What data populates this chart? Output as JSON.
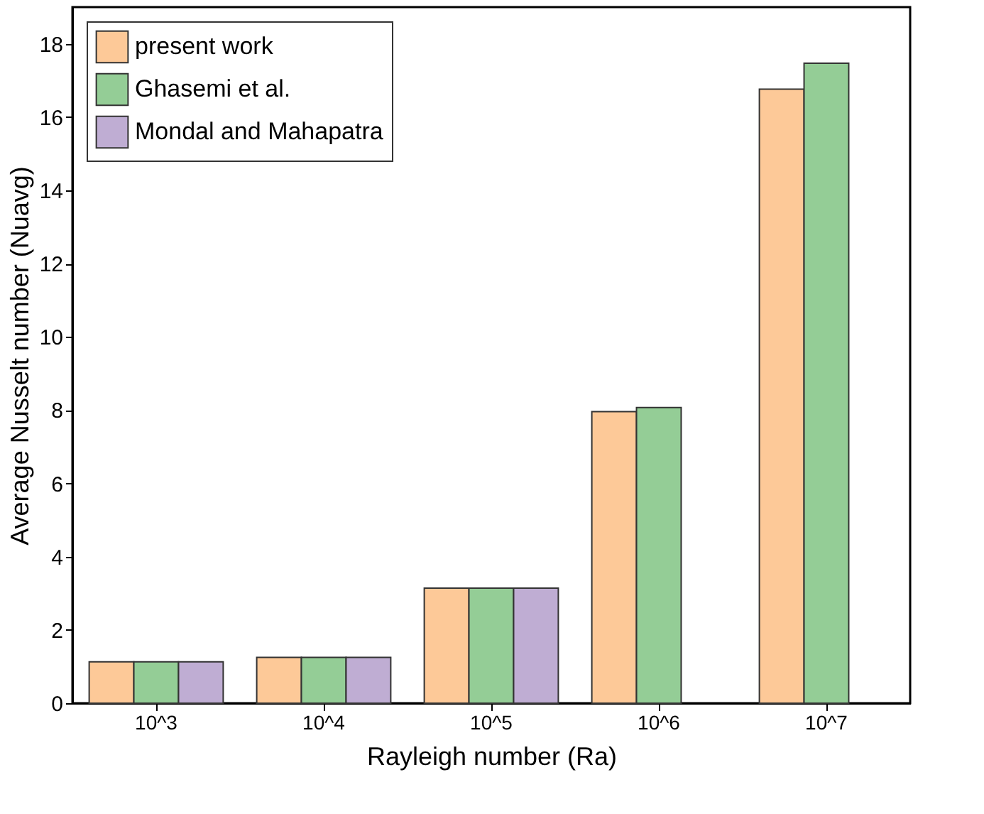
{
  "chart_data": {
    "type": "bar",
    "categories": [
      "10^3",
      "10^4",
      "10^5",
      "10^6",
      "10^7"
    ],
    "series": [
      {
        "name": "present work",
        "color": "#fdc998",
        "values": [
          1.13,
          1.25,
          3.14,
          7.96,
          16.76
        ]
      },
      {
        "name": "Ghasemi et al.",
        "color": "#94cd96",
        "values": [
          1.13,
          1.25,
          3.14,
          8.07,
          17.47
        ]
      },
      {
        "name": "Mondal and Mahapatra",
        "color": "#bfadd3",
        "values": [
          1.13,
          1.25,
          3.14,
          null,
          null
        ]
      }
    ],
    "xlabel": "Rayleigh number (Ra)",
    "ylabel": "Average Nusselt number (Nuavg)",
    "ylim": [
      0,
      19
    ],
    "yticks": [
      0,
      2,
      4,
      6,
      8,
      10,
      12,
      14,
      16,
      18
    ],
    "grid": false,
    "legend": "top left"
  }
}
